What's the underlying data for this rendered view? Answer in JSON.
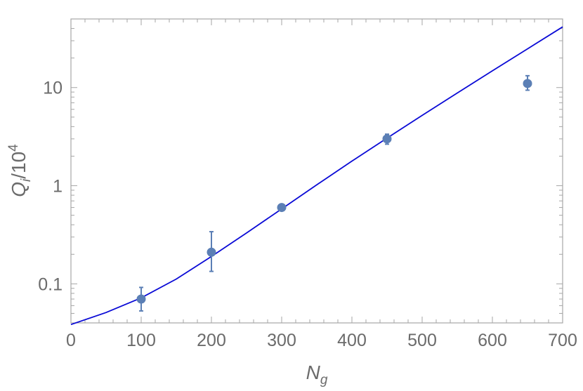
{
  "chart_data": {
    "type": "scatter",
    "xlabel": {
      "base": "N",
      "sub": "g"
    },
    "ylabel": {
      "base": "Q",
      "sub": "i",
      "suffix": "/10",
      "sup": "4"
    },
    "x_ticks": [
      0,
      100,
      200,
      300,
      400,
      500,
      600,
      700
    ],
    "x_tick_labels": [
      "0",
      "100",
      "200",
      "300",
      "400",
      "500",
      "600",
      "700"
    ],
    "y_ticks": [
      0.1,
      1,
      10
    ],
    "y_tick_labels": [
      "0.1",
      "1",
      "10"
    ],
    "xlim": [
      0,
      700
    ],
    "ylim": [
      0.04,
      50
    ],
    "y_scale": "log",
    "grid": false,
    "series": [
      {
        "kind": "points",
        "color": "#5b7fb5",
        "points": [
          {
            "x": 100,
            "y": 0.07,
            "err_low": 0.053,
            "err_high": 0.092
          },
          {
            "x": 200,
            "y": 0.21,
            "err_low": 0.134,
            "err_high": 0.34
          },
          {
            "x": 300,
            "y": 0.6,
            "err_low": 0.58,
            "err_high": 0.62
          },
          {
            "x": 450,
            "y": 3.0,
            "err_low": 2.65,
            "err_high": 3.35
          },
          {
            "x": 650,
            "y": 11.0,
            "err_low": 9.4,
            "err_high": 13.2
          }
        ]
      },
      {
        "kind": "line",
        "color": "#0a0ad6",
        "x": [
          0,
          50,
          100,
          150,
          200,
          250,
          300,
          350,
          400,
          450,
          500,
          550,
          600,
          650,
          700
        ],
        "y": [
          0.0385,
          0.051,
          0.072,
          0.112,
          0.19,
          0.33,
          0.58,
          1.02,
          1.78,
          3.05,
          5.2,
          8.8,
          14.8,
          24.8,
          41.5
        ]
      }
    ]
  }
}
